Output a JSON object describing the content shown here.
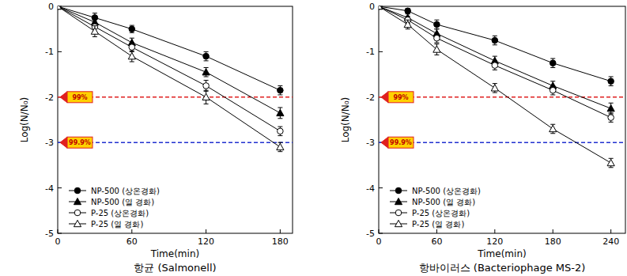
{
  "chart_data": [
    {
      "type": "line",
      "title": "항균 (Salmonell)",
      "x_label": "Time(min)",
      "y_label": "Log(N/N₀)",
      "x": [
        0,
        30,
        60,
        120,
        180
      ],
      "xlim": [
        0,
        190
      ],
      "xticks": [
        0,
        60,
        120,
        180
      ],
      "ylim": [
        -5,
        0
      ],
      "yticks": [
        -5,
        -4,
        -3,
        -2,
        -1,
        0
      ],
      "grid": false,
      "legend": "lower left",
      "series": [
        {
          "name": "NP-500 (상온경화)",
          "color": "#000000",
          "marker": "circle",
          "values": [
            0,
            -0.25,
            -0.5,
            -1.1,
            -1.85
          ],
          "errors": [
            0,
            0.1,
            0.08,
            0.1,
            0.1
          ]
        },
        {
          "name": "NP-500 (열 경화)",
          "color": "#000000",
          "marker": "triangle",
          "values": [
            0,
            -0.35,
            -0.8,
            -1.45,
            -2.35
          ],
          "errors": [
            0,
            0.1,
            0.1,
            0.1,
            0.12
          ]
        },
        {
          "name": "P-25 (상온경화)",
          "color": "#000000",
          "marker": "circle-open",
          "values": [
            0,
            -0.45,
            -0.9,
            -1.75,
            -2.75
          ],
          "errors": [
            0,
            0.1,
            0.1,
            0.12,
            0.1
          ]
        },
        {
          "name": "P-25 (열 경화)",
          "color": "#000000",
          "marker": "triangle-open",
          "values": [
            0,
            -0.55,
            -1.1,
            -2.0,
            -3.1
          ],
          "errors": [
            0,
            0.12,
            0.12,
            0.15,
            0.1
          ]
        }
      ],
      "annotations": [
        {
          "value": -2,
          "label": "99%",
          "color": "#e02020"
        },
        {
          "value": -3,
          "label": "99.9%",
          "color": "#2030d0"
        }
      ]
    },
    {
      "type": "line",
      "title": "항바이러스 (Bacteriophage MS-2)",
      "x_label": "Time(min)",
      "y_label": "Log(N/N₀)",
      "x": [
        0,
        30,
        60,
        120,
        180,
        240
      ],
      "xlim": [
        0,
        255
      ],
      "xticks": [
        0,
        60,
        120,
        180,
        240
      ],
      "ylim": [
        -5,
        0
      ],
      "yticks": [
        -5,
        -4,
        -3,
        -2,
        -1,
        0
      ],
      "grid": false,
      "legend": "lower left",
      "series": [
        {
          "name": "NP-500 (상온경화)",
          "color": "#000000",
          "marker": "circle",
          "values": [
            0,
            -0.1,
            -0.4,
            -0.75,
            -1.25,
            -1.65
          ],
          "errors": [
            0,
            0.05,
            0.1,
            0.1,
            0.1,
            0.1
          ]
        },
        {
          "name": "NP-500 (열 경화)",
          "color": "#000000",
          "marker": "triangle",
          "values": [
            0,
            -0.25,
            -0.6,
            -1.2,
            -1.75,
            -2.25
          ],
          "errors": [
            0,
            0.08,
            0.1,
            0.1,
            0.1,
            0.12
          ]
        },
        {
          "name": "P-25 (상온경화)",
          "color": "#000000",
          "marker": "circle-open",
          "values": [
            0,
            -0.3,
            -0.7,
            -1.3,
            -1.85,
            -2.45
          ],
          "errors": [
            0,
            0.08,
            0.1,
            0.1,
            0.1,
            0.1
          ]
        },
        {
          "name": "P-25 (열 경화)",
          "color": "#000000",
          "marker": "triangle-open",
          "values": [
            0,
            -0.4,
            -0.95,
            -1.8,
            -2.7,
            -3.45
          ],
          "errors": [
            0,
            0.1,
            0.12,
            0.1,
            0.1,
            0.1
          ]
        }
      ],
      "annotations": [
        {
          "value": -2,
          "label": "99%",
          "color": "#e02020"
        },
        {
          "value": -3,
          "label": "99.9%",
          "color": "#2030d0"
        }
      ]
    }
  ]
}
